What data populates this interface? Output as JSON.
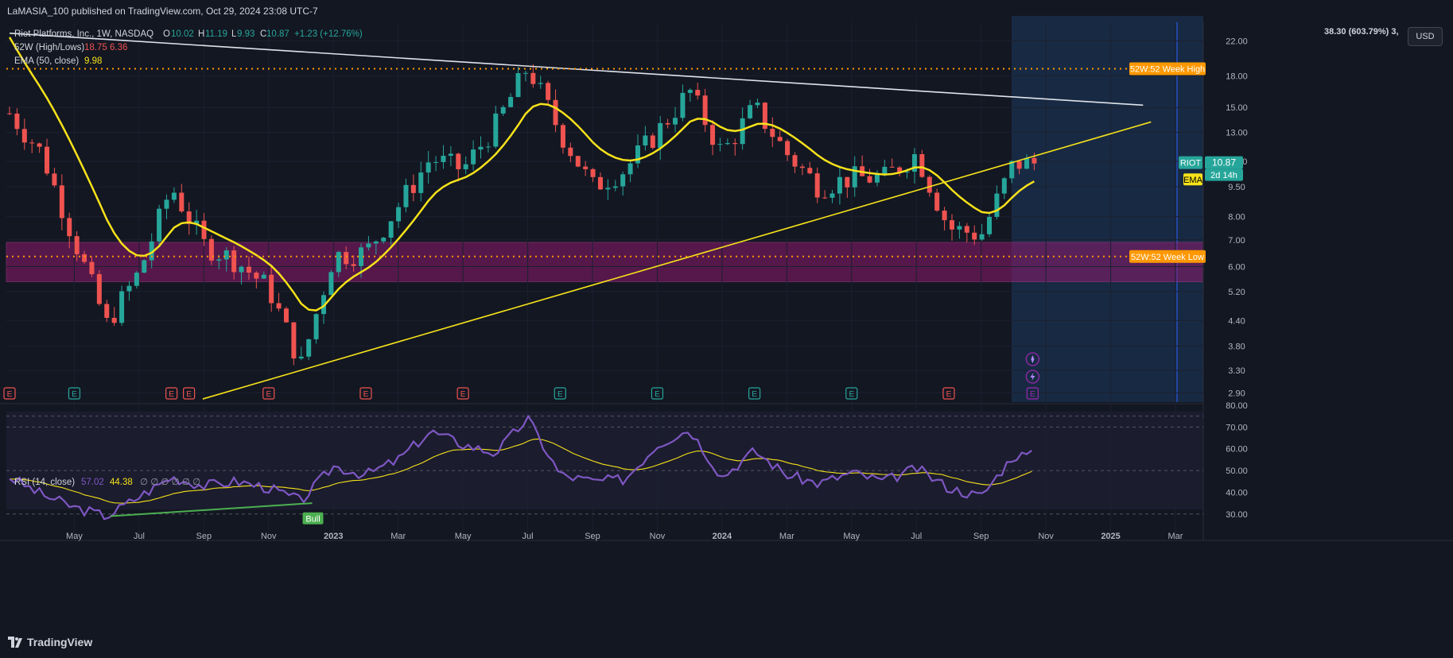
{
  "publisher": "LaMASIA_100 published on TradingView.com, Oct 29, 2024 23:08 UTC-7",
  "legend": {
    "symbol": "Riot Platforms, Inc., 1W, NASDAQ",
    "o_label": "O",
    "o": "10.02",
    "h_label": "H",
    "h": "11.19",
    "l_label": "L",
    "l": "9.93",
    "c_label": "C",
    "c": "10.87",
    "change": "+1.23 (+12.76%)",
    "hl_label": "52W (High/Lows)",
    "hl_values": "18.75  6.36",
    "ema_label": "EMA (50, close)",
    "ema_value": "9.98",
    "rsi_label": "RSI (14, close)",
    "rsi_value": "57.02",
    "rsi_ma": "44.38",
    "rsi_extra": "∅ ∅ ∅ ∅ ∅ ∅"
  },
  "currency_button": "USD",
  "top_right_readout": "38.30 (603.79%) 3,",
  "tags": {
    "high": "52W:52 Week High",
    "low": "52W:52 Week Low",
    "symbol": "RIOT",
    "price": "10.87",
    "countdown": "2d 14h",
    "ema": "EMA",
    "bull": "Bull"
  },
  "earnings_marker": "E",
  "watermark": "TradingView",
  "colors": {
    "background": "#131722",
    "up": "#26a69a",
    "down": "#ef5350",
    "ema": "#f6e21a",
    "high_line": "#ff9800",
    "zone": "#8e1a6e",
    "rsi": "#7e57c2",
    "rsi_ma": "#f6e21a",
    "bull": "#4caf50",
    "projection": "#1e3a5f"
  },
  "chart_data": [
    {
      "type": "candlestick",
      "title": "Riot Platforms, Inc., 1W, NASDAQ",
      "x_axis_labels": [
        "May",
        "Jul",
        "Sep",
        "Nov",
        "2023",
        "Mar",
        "May",
        "Jul",
        "Sep",
        "Nov",
        "2024",
        "Mar",
        "May",
        "Jul",
        "Sep",
        "Nov",
        "2025",
        "Mar"
      ],
      "price_scale": "log",
      "y_ticks": [
        "22.00",
        "18.00",
        "15.00",
        "13.00",
        "11.00",
        "9.50",
        "8.00",
        "7.00",
        "6.00",
        "5.20",
        "4.40",
        "3.80",
        "3.30",
        "2.90"
      ],
      "ylim": [
        2.75,
        24.5
      ],
      "approx_weekly_close_path": [
        {
          "date": "2022-03",
          "close": 14.5
        },
        {
          "date": "2022-04",
          "close": 11.5
        },
        {
          "date": "2022-05",
          "close": 7.0
        },
        {
          "date": "2022-06",
          "close": 4.3
        },
        {
          "date": "2022-07",
          "close": 5.8
        },
        {
          "date": "2022-08",
          "close": 9.5
        },
        {
          "date": "2022-09",
          "close": 6.8
        },
        {
          "date": "2022-10",
          "close": 6.2
        },
        {
          "date": "2022-11",
          "close": 5.3
        },
        {
          "date": "2022-12",
          "close": 3.4
        },
        {
          "date": "2023-01",
          "close": 6.4
        },
        {
          "date": "2023-02",
          "close": 6.5
        },
        {
          "date": "2023-03",
          "close": 8.5
        },
        {
          "date": "2023-04",
          "close": 11.2
        },
        {
          "date": "2023-05",
          "close": 10.5
        },
        {
          "date": "2023-06",
          "close": 13.5
        },
        {
          "date": "2023-07",
          "close": 19.0
        },
        {
          "date": "2023-08",
          "close": 13.0
        },
        {
          "date": "2023-09",
          "close": 9.5
        },
        {
          "date": "2023-10",
          "close": 10.5
        },
        {
          "date": "2023-11",
          "close": 13.0
        },
        {
          "date": "2023-12",
          "close": 16.5
        },
        {
          "date": "2024-01",
          "close": 11.5
        },
        {
          "date": "2024-02",
          "close": 15.0
        },
        {
          "date": "2024-03",
          "close": 11.5
        },
        {
          "date": "2024-04",
          "close": 9.5
        },
        {
          "date": "2024-05",
          "close": 10.0
        },
        {
          "date": "2024-06",
          "close": 10.0
        },
        {
          "date": "2024-07",
          "close": 11.5
        },
        {
          "date": "2024-08",
          "close": 7.5
        },
        {
          "date": "2024-09",
          "close": 7.2
        },
        {
          "date": "2024-10",
          "close": 10.87
        }
      ],
      "last_close": 10.87,
      "ema_50_last": 9.98,
      "week_52_high": 18.75,
      "week_52_low": 6.36,
      "support_zone": [
        5.5,
        6.9
      ],
      "descending_trendline": {
        "from": {
          "date": "2022-03",
          "price": 23.0
        },
        "to": {
          "date": "2025-02",
          "price": 15.2
        }
      },
      "ascending_trendline": {
        "from": {
          "date": "2022-07",
          "price": 2.8
        },
        "to": {
          "date": "2025-02",
          "price": 13.8
        }
      }
    },
    {
      "type": "line",
      "title": "RSI (14, close)",
      "y_ticks": [
        "80.00",
        "70.00",
        "60.00",
        "50.00",
        "40.00",
        "30.00"
      ],
      "ylim": [
        27,
        80
      ],
      "series": [
        {
          "name": "RSI",
          "last": 57.02,
          "approx_path": [
            {
              "date": "2022-03",
              "value": 47
            },
            {
              "date": "2022-04",
              "value": 39
            },
            {
              "date": "2022-05",
              "value": 33
            },
            {
              "date": "2022-06",
              "value": 29
            },
            {
              "date": "2022-07",
              "value": 38
            },
            {
              "date": "2022-08",
              "value": 47
            },
            {
              "date": "2022-09",
              "value": 43
            },
            {
              "date": "2022-10",
              "value": 45
            },
            {
              "date": "2022-11",
              "value": 42
            },
            {
              "date": "2022-12",
              "value": 36
            },
            {
              "date": "2023-01",
              "value": 52
            },
            {
              "date": "2023-02",
              "value": 48
            },
            {
              "date": "2023-03",
              "value": 55
            },
            {
              "date": "2023-04",
              "value": 68
            },
            {
              "date": "2023-05",
              "value": 62
            },
            {
              "date": "2023-06",
              "value": 58
            },
            {
              "date": "2023-07",
              "value": 74
            },
            {
              "date": "2023-08",
              "value": 48
            },
            {
              "date": "2023-09",
              "value": 45
            },
            {
              "date": "2023-10",
              "value": 46
            },
            {
              "date": "2023-11",
              "value": 62
            },
            {
              "date": "2023-12",
              "value": 69
            },
            {
              "date": "2024-01",
              "value": 47
            },
            {
              "date": "2024-02",
              "value": 59
            },
            {
              "date": "2024-03",
              "value": 48
            },
            {
              "date": "2024-04",
              "value": 44
            },
            {
              "date": "2024-05",
              "value": 49
            },
            {
              "date": "2024-06",
              "value": 45
            },
            {
              "date": "2024-07",
              "value": 51
            },
            {
              "date": "2024-08",
              "value": 42
            },
            {
              "date": "2024-09",
              "value": 38
            },
            {
              "date": "2024-10",
              "value": 57
            }
          ]
        },
        {
          "name": "RSI-based MA",
          "last": 44.38
        }
      ],
      "bands": [
        30,
        50,
        70
      ]
    }
  ]
}
